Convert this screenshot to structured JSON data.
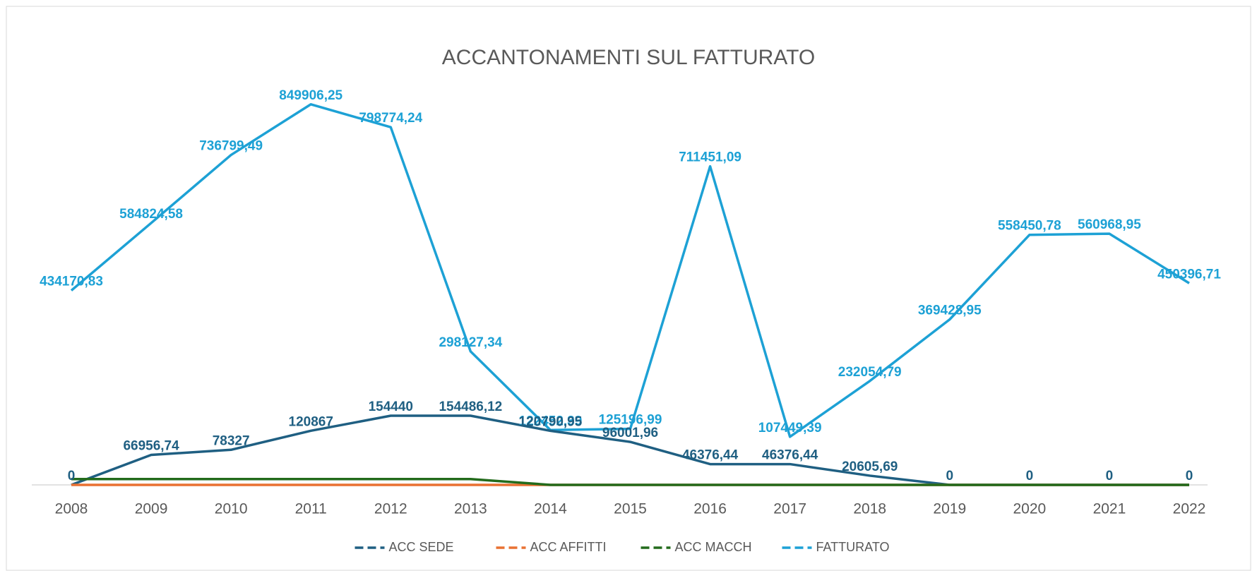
{
  "chart_data": {
    "type": "line",
    "title": "ACCANTONAMENTI SUL FATTURATO",
    "categories": [
      "2008",
      "2009",
      "2010",
      "2011",
      "2012",
      "2013",
      "2014",
      "2015",
      "2016",
      "2017",
      "2018",
      "2019",
      "2020",
      "2021",
      "2022"
    ],
    "ylim": [
      0,
      900000
    ],
    "legend": "bottom",
    "series": [
      {
        "name": "ACC SEDE",
        "color": "#1f5f82",
        "values": [
          0,
          66956.74,
          78327,
          120867,
          154440,
          154486.12,
          120790.95,
          96001.96,
          46376.44,
          46376.44,
          20605.69,
          0,
          0,
          0,
          0
        ],
        "value_labels": [
          "0",
          "66956,74",
          "78327",
          "120867",
          "154440",
          "154486,12",
          "120790,95",
          "96001,96",
          "46376,44",
          "46376,44",
          "20605,69",
          "0",
          "0",
          "0",
          "0"
        ]
      },
      {
        "name": "ACC AFFITTI",
        "color": "#e97132",
        "values": [
          0,
          0,
          0,
          0,
          0,
          0,
          0,
          0,
          0,
          0,
          0,
          0,
          0,
          0,
          0
        ]
      },
      {
        "name": "ACC MACCH",
        "color": "#236b1c",
        "values": [
          13000,
          13000,
          13000,
          13000,
          13000,
          13000,
          0,
          0,
          0,
          0,
          0,
          0,
          0,
          0,
          0
        ]
      },
      {
        "name": "FATTURATO",
        "color": "#1da1d5",
        "values": [
          434170.83,
          584824.58,
          736799.49,
          849906.25,
          798774.24,
          298127.34,
          122452.39,
          125196.99,
          711451.09,
          107449.39,
          232054.79,
          369428.95,
          558450.78,
          560968.95,
          450396.71
        ],
        "value_labels": [
          "434170,83",
          "584824,58",
          "736799,49",
          "849906,25",
          "798774,24",
          "298127,34",
          "122452,39",
          "125196,99",
          "711451,09",
          "107449,39",
          "232054,79",
          "369428,95",
          "558450,78",
          "560968,95",
          "450396,71"
        ]
      }
    ]
  }
}
